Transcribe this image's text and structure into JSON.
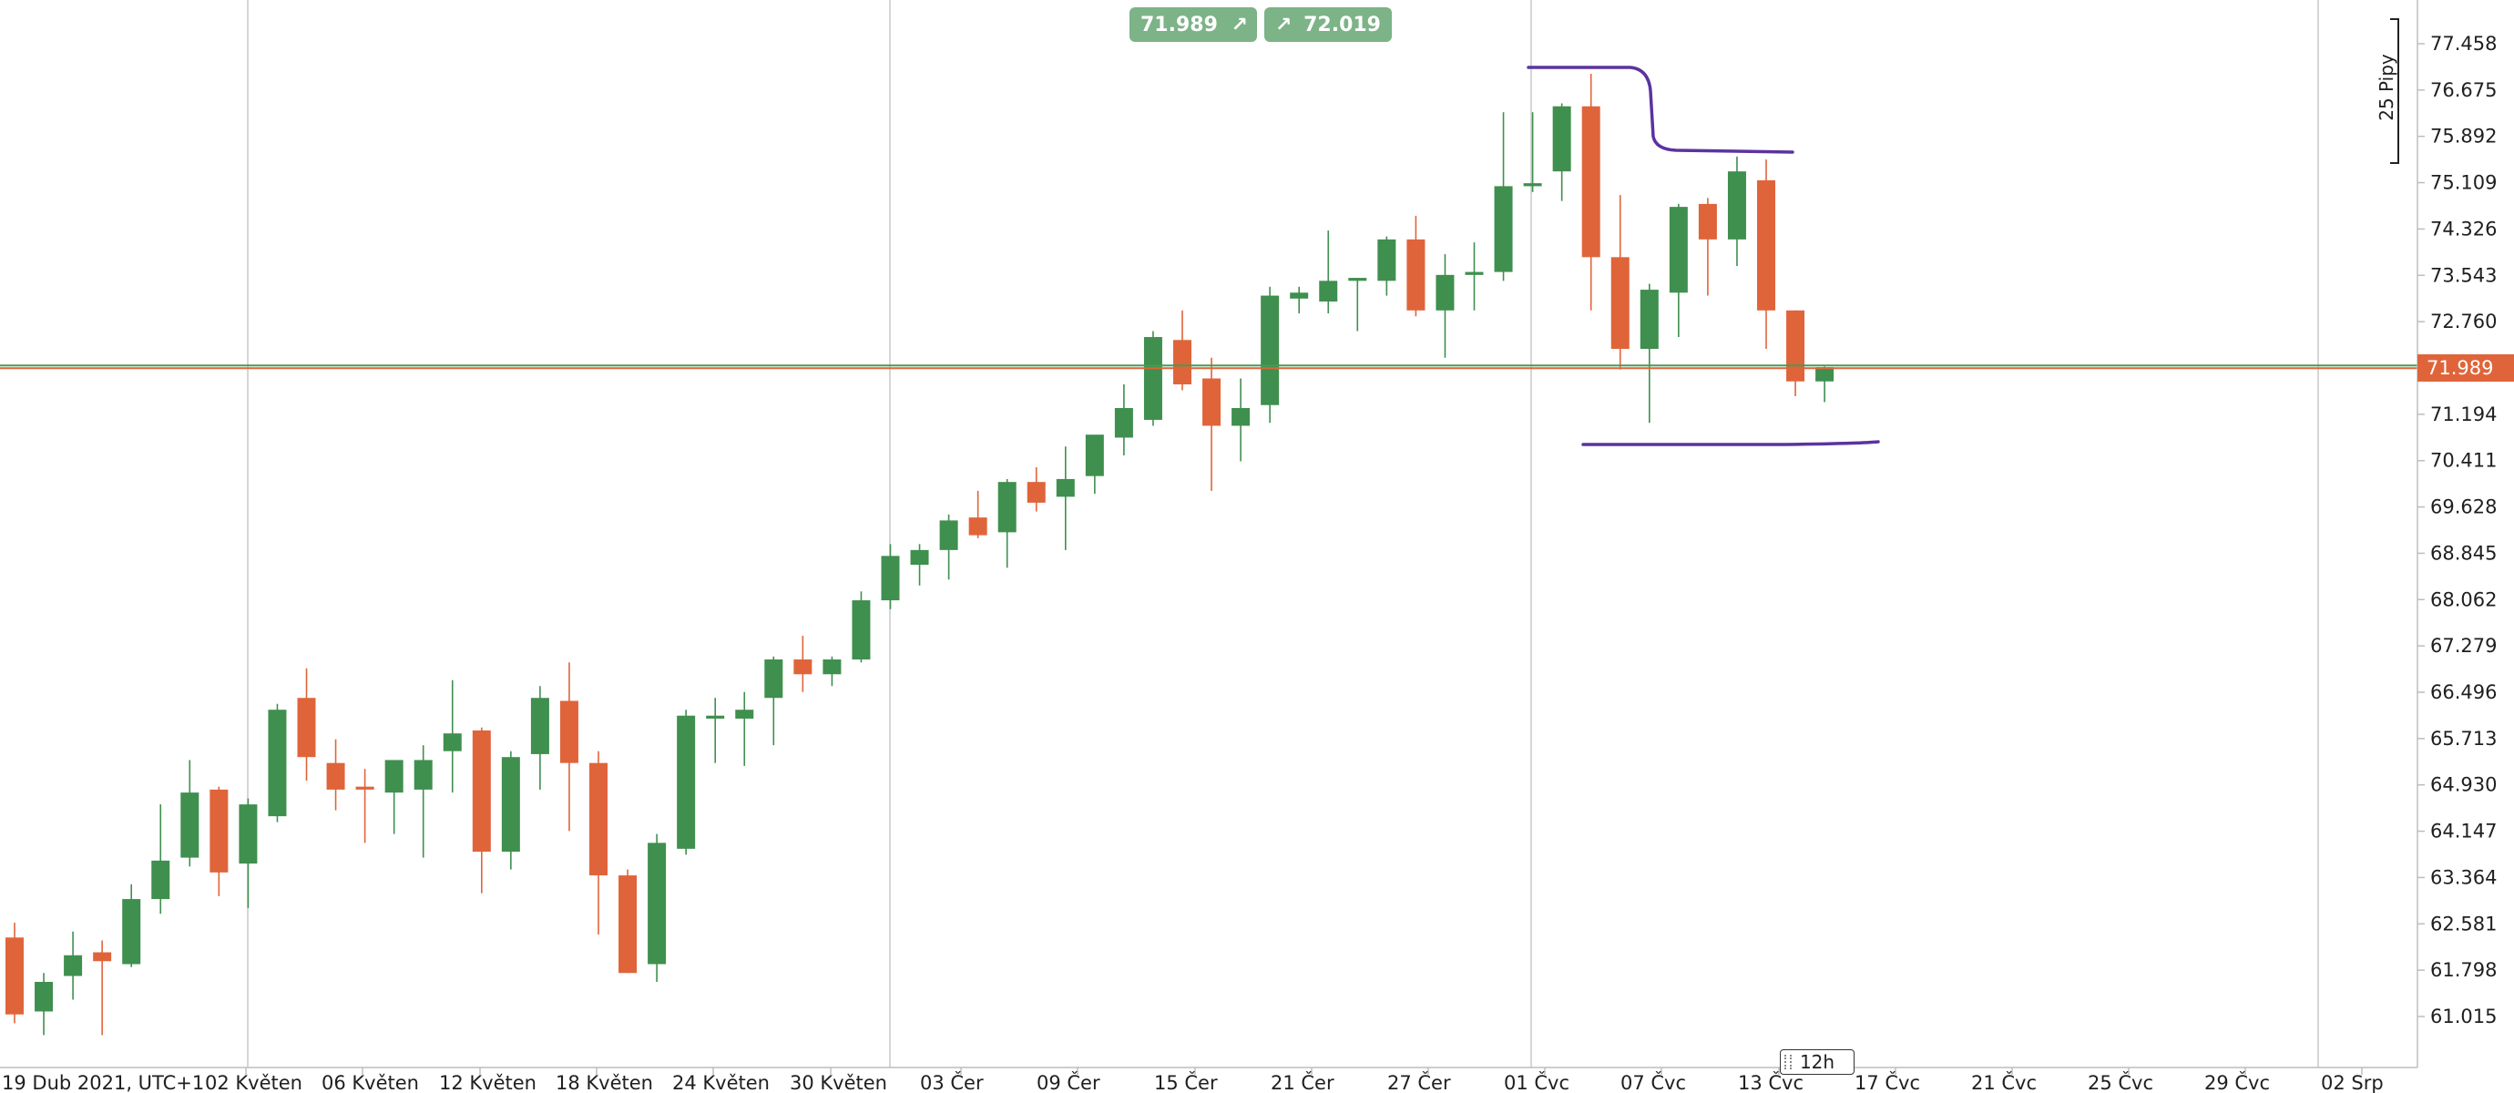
{
  "chart_data": {
    "type": "candlestick",
    "timeframe": "12h",
    "timezone_label": "19 Dub 2021, UTC+1",
    "ylim": [
      60.4,
      78.1
    ],
    "y_ticks": [
      "77.458",
      "76.675",
      "75.892",
      "75.109",
      "74.326",
      "73.543",
      "72.760",
      "71.194",
      "70.411",
      "69.628",
      "68.845",
      "68.062",
      "67.279",
      "66.496",
      "65.713",
      "64.930",
      "64.147",
      "63.364",
      "62.581",
      "61.798",
      "61.015"
    ],
    "x_labels": [
      "19 Dub 2021, UTC+1",
      "02 Květen",
      "06 Květen",
      "12 Květen",
      "18 Květen",
      "24 Květen",
      "30 Květen",
      "03 Čer",
      "09 Čer",
      "15 Čer",
      "21 Čer",
      "27 Čer",
      "01 Čvc",
      "07 Čvc",
      "13 Čvc",
      "17 Čvc",
      "21 Čvc",
      "25 Čvc",
      "29 Čvc",
      "02 Srp"
    ],
    "current_price": "71.989",
    "current_price_value": 71.989,
    "bid": "71.989",
    "ask": "72.019",
    "pips_label": "25 Pipy",
    "colors": {
      "up": "#3f8f4e",
      "down": "#e0643a",
      "line_green": "#4a9a50",
      "line_orange": "#e0643a",
      "annotation": "#5b33a0",
      "grid": "#c8c8c8"
    },
    "candles": [
      {
        "o": 62.35,
        "h": 62.6,
        "l": 60.9,
        "c": 61.05
      },
      {
        "o": 61.1,
        "h": 61.75,
        "l": 60.7,
        "c": 61.6
      },
      {
        "o": 61.7,
        "h": 62.45,
        "l": 61.3,
        "c": 62.05
      },
      {
        "o": 62.1,
        "h": 62.3,
        "l": 60.7,
        "c": 61.95
      },
      {
        "o": 61.9,
        "h": 63.25,
        "l": 61.85,
        "c": 63.0
      },
      {
        "o": 63.0,
        "h": 64.6,
        "l": 62.75,
        "c": 63.65
      },
      {
        "o": 63.7,
        "h": 65.35,
        "l": 63.55,
        "c": 64.8
      },
      {
        "o": 64.85,
        "h": 64.9,
        "l": 63.05,
        "c": 63.45
      },
      {
        "o": 63.6,
        "h": 64.7,
        "l": 62.85,
        "c": 64.6
      },
      {
        "o": 64.4,
        "h": 66.3,
        "l": 64.3,
        "c": 66.2
      },
      {
        "o": 66.4,
        "h": 66.9,
        "l": 65.0,
        "c": 65.4
      },
      {
        "o": 65.3,
        "h": 65.7,
        "l": 64.5,
        "c": 64.85
      },
      {
        "o": 64.9,
        "h": 65.2,
        "l": 63.95,
        "c": 64.85
      },
      {
        "o": 64.8,
        "h": 65.35,
        "l": 64.1,
        "c": 65.35
      },
      {
        "o": 64.85,
        "h": 65.6,
        "l": 63.7,
        "c": 65.35
      },
      {
        "o": 65.5,
        "h": 66.7,
        "l": 64.8,
        "c": 65.8
      },
      {
        "o": 65.85,
        "h": 65.9,
        "l": 63.1,
        "c": 63.8
      },
      {
        "o": 63.8,
        "h": 65.5,
        "l": 63.5,
        "c": 65.4
      },
      {
        "o": 65.45,
        "h": 66.6,
        "l": 64.85,
        "c": 66.4
      },
      {
        "o": 66.35,
        "h": 67.0,
        "l": 64.15,
        "c": 65.3
      },
      {
        "o": 65.3,
        "h": 65.5,
        "l": 62.4,
        "c": 63.4
      },
      {
        "o": 63.4,
        "h": 63.5,
        "l": 61.75,
        "c": 61.75
      },
      {
        "o": 61.9,
        "h": 64.1,
        "l": 61.6,
        "c": 63.95
      },
      {
        "o": 63.85,
        "h": 66.2,
        "l": 63.75,
        "c": 66.1
      },
      {
        "o": 66.05,
        "h": 66.4,
        "l": 65.3,
        "c": 66.1
      },
      {
        "o": 66.05,
        "h": 66.5,
        "l": 65.25,
        "c": 66.2
      },
      {
        "o": 66.4,
        "h": 67.1,
        "l": 65.6,
        "c": 67.05
      },
      {
        "o": 67.05,
        "h": 67.45,
        "l": 66.5,
        "c": 66.8
      },
      {
        "o": 66.8,
        "h": 67.1,
        "l": 66.6,
        "c": 67.05
      },
      {
        "o": 67.05,
        "h": 68.2,
        "l": 67.0,
        "c": 68.05
      },
      {
        "o": 68.05,
        "h": 69.0,
        "l": 67.9,
        "c": 68.8
      },
      {
        "o": 68.65,
        "h": 69.0,
        "l": 68.3,
        "c": 68.9
      },
      {
        "o": 68.9,
        "h": 69.5,
        "l": 68.4,
        "c": 69.4
      },
      {
        "o": 69.45,
        "h": 69.9,
        "l": 69.1,
        "c": 69.15
      },
      {
        "o": 69.2,
        "h": 70.1,
        "l": 68.6,
        "c": 70.05
      },
      {
        "o": 70.05,
        "h": 70.3,
        "l": 69.55,
        "c": 69.7
      },
      {
        "o": 69.8,
        "h": 70.65,
        "l": 68.9,
        "c": 70.1
      },
      {
        "o": 70.15,
        "h": 70.8,
        "l": 69.85,
        "c": 70.85
      },
      {
        "o": 70.8,
        "h": 71.7,
        "l": 70.5,
        "c": 71.3
      },
      {
        "o": 71.1,
        "h": 72.6,
        "l": 71.0,
        "c": 72.5
      },
      {
        "o": 72.45,
        "h": 72.95,
        "l": 71.6,
        "c": 71.7
      },
      {
        "o": 71.8,
        "h": 72.15,
        "l": 69.9,
        "c": 71.0
      },
      {
        "o": 71.0,
        "h": 71.8,
        "l": 70.4,
        "c": 71.3
      },
      {
        "o": 71.35,
        "h": 73.35,
        "l": 71.05,
        "c": 73.2
      },
      {
        "o": 73.15,
        "h": 73.35,
        "l": 72.9,
        "c": 73.25
      },
      {
        "o": 73.1,
        "h": 74.3,
        "l": 72.9,
        "c": 73.45
      },
      {
        "o": 73.45,
        "h": 73.5,
        "l": 72.6,
        "c": 73.5
      },
      {
        "o": 73.45,
        "h": 74.2,
        "l": 73.2,
        "c": 74.15
      },
      {
        "o": 74.15,
        "h": 74.55,
        "l": 72.85,
        "c": 72.95
      },
      {
        "o": 72.95,
        "h": 73.9,
        "l": 72.15,
        "c": 73.55
      },
      {
        "o": 73.55,
        "h": 74.1,
        "l": 72.95,
        "c": 73.6
      },
      {
        "o": 73.6,
        "h": 76.3,
        "l": 73.45,
        "c": 75.05
      },
      {
        "o": 75.05,
        "h": 76.3,
        "l": 74.95,
        "c": 75.1
      },
      {
        "o": 75.3,
        "h": 76.45,
        "l": 74.8,
        "c": 76.4
      },
      {
        "o": 76.4,
        "h": 76.95,
        "l": 72.95,
        "c": 73.85
      },
      {
        "o": 73.85,
        "h": 74.9,
        "l": 71.95,
        "c": 72.3
      },
      {
        "o": 72.3,
        "h": 73.4,
        "l": 71.05,
        "c": 73.3
      },
      {
        "o": 73.25,
        "h": 74.75,
        "l": 72.5,
        "c": 74.7
      },
      {
        "o": 74.75,
        "h": 74.85,
        "l": 73.2,
        "c": 74.15
      },
      {
        "o": 74.15,
        "h": 75.55,
        "l": 73.7,
        "c": 75.3
      },
      {
        "o": 75.15,
        "h": 75.5,
        "l": 72.3,
        "c": 72.95
      },
      {
        "o": 72.95,
        "h": 72.95,
        "l": 71.5,
        "c": 71.75
      },
      {
        "o": 71.75,
        "h": 72.0,
        "l": 71.4,
        "c": 71.99
      }
    ]
  }
}
